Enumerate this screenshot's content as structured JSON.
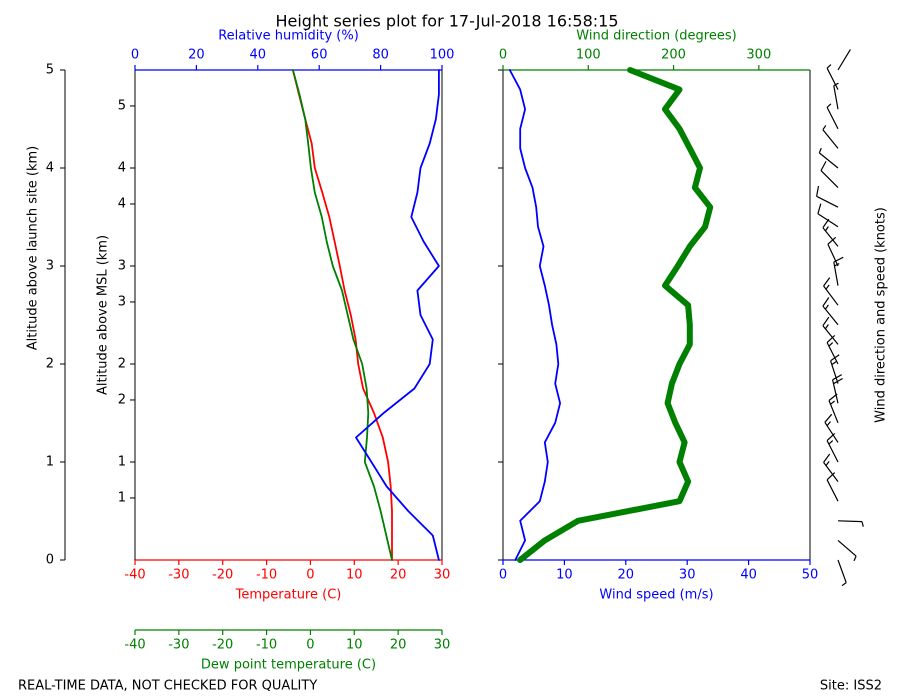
{
  "chart_data": [
    {
      "type": "line",
      "title": "Height series plot for 17-Jul-2018 16:58:15",
      "y_label": "Altitude above launch site (km)",
      "y_msl_label": "Altitude above MSL (km)",
      "altitude": [
        0,
        0.25,
        0.5,
        0.75,
        1,
        1.25,
        1.5,
        1.75,
        2,
        2.25,
        2.5,
        2.75,
        3,
        3.25,
        3.5,
        3.75,
        4,
        4.25,
        4.5,
        4.75,
        5
      ],
      "ylim": [
        0,
        5
      ],
      "yticks": [
        0,
        1,
        2,
        3,
        4,
        5
      ],
      "y_msl_lim": [
        0.367,
        5.367
      ],
      "y_msl_ticks": [
        1,
        {
          "value": 1.367,
          "label": "1"
        },
        2,
        {
          "value": 2.367,
          "label": "2"
        },
        3,
        {
          "value": 3.367,
          "label": "3"
        },
        4,
        {
          "value": 4.367,
          "label": "4"
        },
        5
      ],
      "xlim": [
        -40,
        30
      ],
      "xticks": [
        -40,
        -30,
        -20,
        -10,
        0,
        10,
        20,
        30
      ],
      "x2lim": [
        0,
        100
      ],
      "x2ticks": [
        0,
        20,
        40,
        60,
        80,
        100
      ],
      "x3lim": [
        -40,
        30
      ],
      "x3ticks": [
        -40,
        -30,
        -20,
        -10,
        0,
        10,
        20,
        30
      ],
      "series": [
        {
          "name": "Temperature (C)",
          "color": "#ff0000",
          "axis": "x",
          "values": [
            18.6,
            18.6,
            18.6,
            18.3,
            17.7,
            16.5,
            14.5,
            12,
            10.9,
            10.3,
            9.2,
            7.8,
            6.7,
            5.5,
            4.3,
            2.7,
            1.0,
            0.3,
            -1.2,
            -2.6,
            -4.0
          ]
        },
        {
          "name": "Dew point temperature (C)",
          "color": "#008000",
          "axis": "x3",
          "values": [
            18.6,
            17.3,
            16,
            14.5,
            12.4,
            12.9,
            13.2,
            12.8,
            11.8,
            9.8,
            8.5,
            7.2,
            5.1,
            3.7,
            2.6,
            1.0,
            0.1,
            -0.5,
            -1.2,
            -2.5,
            -4.0
          ]
        },
        {
          "name": "Relative humidity (%)",
          "color": "#0000ff",
          "axis": "x2",
          "values": [
            99,
            97,
            89,
            82,
            77,
            72,
            81,
            91,
            96,
            97,
            93,
            92,
            99,
            94,
            90,
            92,
            93,
            96,
            98,
            99,
            99
          ]
        }
      ]
    },
    {
      "type": "line",
      "barb_label": "Wind direction and speed (knots)",
      "altitude": [
        0,
        0.2,
        0.4,
        0.6,
        0.8,
        1.0,
        1.2,
        1.4,
        1.6,
        1.8,
        2.0,
        2.2,
        2.4,
        2.6,
        2.8,
        3.0,
        3.2,
        3.4,
        3.6,
        3.8,
        4.0,
        4.2,
        4.4,
        4.6,
        4.8,
        5.0
      ],
      "ylim": [
        0,
        5
      ],
      "yticks": [
        0,
        1,
        2,
        3,
        4,
        5
      ],
      "xlim": [
        0,
        50
      ],
      "xticks": [
        0,
        10,
        20,
        30,
        40,
        50
      ],
      "x2lim": [
        0,
        360
      ],
      "x2ticks": [
        0,
        100,
        200,
        300
      ],
      "series": [
        {
          "name": "Wind speed (m/s)",
          "color": "#0000ff",
          "axis": "x",
          "values": [
            2,
            3.6,
            2.8,
            6,
            6.8,
            7.3,
            6.8,
            8.5,
            9.3,
            8.5,
            9,
            8.7,
            8,
            7.5,
            6.8,
            6,
            6.6,
            5.7,
            5.4,
            4.8,
            3.6,
            2.8,
            2.8,
            3.6,
            2.8,
            1.1
          ]
        },
        {
          "name": "Wind direction (degrees)",
          "color": "#008000",
          "axis": "x2",
          "values": [
            20,
            49,
            88,
            207,
            217,
            207,
            213,
            202,
            193,
            198,
            207,
            219,
            219,
            217,
            190,
            205,
            219,
            237,
            243,
            225,
            231,
            219,
            207,
            190,
            207,
            149
          ]
        }
      ]
    }
  ],
  "footer": {
    "left": "REAL-TIME DATA, NOT CHECKED FOR QUALITY",
    "right": "Site: ISS2"
  }
}
